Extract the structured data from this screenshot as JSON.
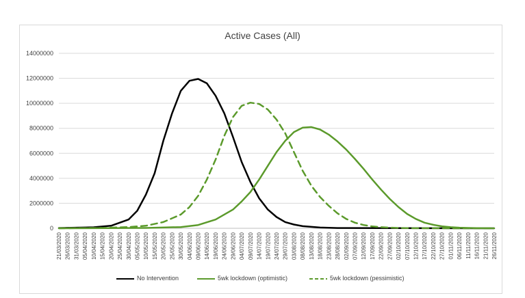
{
  "chart_data": {
    "type": "line",
    "title": "Active Cases (All)",
    "xlabel": "",
    "ylabel": "",
    "ylim": [
      0,
      14000000
    ],
    "yticks": [
      0,
      2000000,
      4000000,
      6000000,
      8000000,
      10000000,
      12000000,
      14000000
    ],
    "ytick_labels": [
      "0",
      "2000000",
      "4000000",
      "6000000",
      "8000000",
      "10000000",
      "12000000",
      "14000000"
    ],
    "xtick_labels": [
      "21/03/2020",
      "26/03/2020",
      "31/03/2020",
      "05/04/2020",
      "10/04/2020",
      "15/04/2020",
      "20/04/2020",
      "25/04/2020",
      "30/04/2020",
      "05/05/2020",
      "10/05/2020",
      "15/05/2020",
      "20/05/2020",
      "25/05/2020",
      "30/05/2020",
      "04/06/2020",
      "09/06/2020",
      "14/06/2020",
      "19/06/2020",
      "24/06/2020",
      "29/06/2020",
      "04/07/2020",
      "09/07/2020",
      "14/07/2020",
      "19/07/2020",
      "24/07/2020",
      "29/07/2020",
      "03/08/2020",
      "08/08/2020",
      "13/08/2020",
      "18/08/2020",
      "23/08/2020",
      "28/08/2020",
      "02/09/2020",
      "07/09/2020",
      "12/09/2020",
      "17/09/2020",
      "22/09/2020",
      "27/09/2020",
      "02/10/2020",
      "07/10/2020",
      "12/10/2020",
      "17/10/2020",
      "22/10/2020",
      "27/10/2020",
      "01/11/2020",
      "06/11/2020",
      "11/11/2020",
      "16/11/2020",
      "21/11/2020",
      "26/11/2020"
    ],
    "grid": "horizontal",
    "legend_position": "bottom",
    "series": [
      {
        "name": "No Intervention",
        "color": "#000000",
        "dash": "solid",
        "x": [
          "21/03/2020",
          "10/04/2020",
          "20/04/2020",
          "30/04/2020",
          "05/05/2020",
          "10/05/2020",
          "15/05/2020",
          "20/05/2020",
          "25/05/2020",
          "30/05/2020",
          "04/06/2020",
          "09/06/2020",
          "14/06/2020",
          "19/06/2020",
          "24/06/2020",
          "29/06/2020",
          "04/07/2020",
          "09/07/2020",
          "14/07/2020",
          "19/07/2020",
          "24/07/2020",
          "29/07/2020",
          "03/08/2020",
          "08/08/2020",
          "18/08/2020",
          "28/08/2020",
          "26/11/2020"
        ],
        "y": [
          20000,
          80000,
          200000,
          700000,
          1400000,
          2700000,
          4400000,
          7000000,
          9200000,
          11000000,
          11800000,
          11950000,
          11600000,
          10600000,
          9200000,
          7300000,
          5300000,
          3700000,
          2400000,
          1500000,
          900000,
          500000,
          300000,
          170000,
          60000,
          20000,
          0
        ]
      },
      {
        "name": "5wk lockdown (optimistic)",
        "color": "#5b9a2b",
        "dash": "solid",
        "x": [
          "21/03/2020",
          "10/05/2020",
          "30/05/2020",
          "09/06/2020",
          "19/06/2020",
          "29/06/2020",
          "04/07/2020",
          "09/07/2020",
          "14/07/2020",
          "19/07/2020",
          "24/07/2020",
          "29/07/2020",
          "03/08/2020",
          "08/08/2020",
          "13/08/2020",
          "18/08/2020",
          "23/08/2020",
          "28/08/2020",
          "02/09/2020",
          "07/09/2020",
          "12/09/2020",
          "17/09/2020",
          "22/09/2020",
          "27/09/2020",
          "02/10/2020",
          "07/10/2020",
          "12/10/2020",
          "17/10/2020",
          "22/10/2020",
          "27/10/2020",
          "01/11/2020",
          "06/11/2020",
          "11/11/2020",
          "16/11/2020",
          "26/11/2020"
        ],
        "y": [
          0,
          30000,
          100000,
          260000,
          700000,
          1500000,
          2150000,
          2900000,
          3900000,
          5000000,
          6100000,
          7000000,
          7700000,
          8050000,
          8100000,
          7900000,
          7500000,
          6950000,
          6300000,
          5550000,
          4750000,
          3900000,
          3100000,
          2350000,
          1700000,
          1150000,
          750000,
          450000,
          280000,
          160000,
          90000,
          50000,
          25000,
          10000,
          0
        ]
      },
      {
        "name": "5wk lockdown (pessimistic)",
        "color": "#5b9a2b",
        "dash": "dashed",
        "x": [
          "21/03/2020",
          "15/04/2020",
          "30/04/2020",
          "10/05/2020",
          "20/05/2020",
          "30/05/2020",
          "04/06/2020",
          "09/06/2020",
          "14/06/2020",
          "19/06/2020",
          "24/06/2020",
          "29/06/2020",
          "04/07/2020",
          "09/07/2020",
          "14/07/2020",
          "19/07/2020",
          "24/07/2020",
          "29/07/2020",
          "03/08/2020",
          "08/08/2020",
          "13/08/2020",
          "18/08/2020",
          "23/08/2020",
          "28/08/2020",
          "02/09/2020",
          "07/09/2020",
          "12/09/2020",
          "17/09/2020",
          "22/09/2020",
          "27/09/2020",
          "02/10/2020",
          "12/10/2020",
          "26/11/2020"
        ],
        "y": [
          0,
          30000,
          100000,
          200000,
          500000,
          1100000,
          1700000,
          2600000,
          3900000,
          5500000,
          7400000,
          8900000,
          9800000,
          10050000,
          9950000,
          9500000,
          8700000,
          7600000,
          6100000,
          4600000,
          3400000,
          2500000,
          1800000,
          1200000,
          750000,
          450000,
          260000,
          150000,
          90000,
          50000,
          25000,
          8000,
          0
        ]
      }
    ]
  }
}
